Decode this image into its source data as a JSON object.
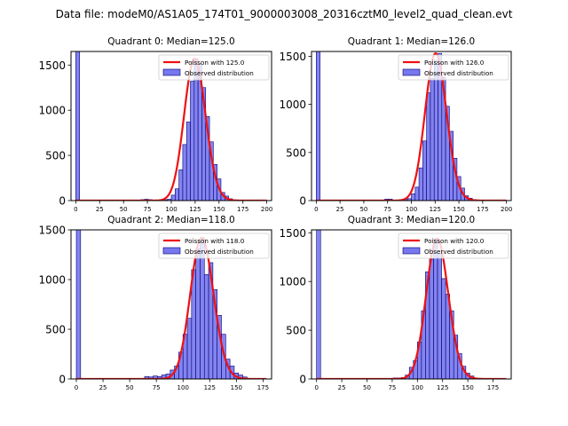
{
  "figure": {
    "title": "Data file: modeM0/AS1A05_174T01_9000003008_20316cztM0_level2_quad_clean.evt"
  },
  "colors": {
    "bar_fill": "#7777ee",
    "bar_edge": "#000077",
    "poisson_line": "#ee1111",
    "axis": "#000000"
  },
  "chart_data": [
    {
      "type": "bar",
      "title": "Quadrant 0: Median=125.0",
      "xlim": [
        -5,
        205
      ],
      "ylim": [
        0,
        1650
      ],
      "xticks": [
        "0",
        "25",
        "50",
        "75",
        "100",
        "125",
        "150",
        "175",
        "200"
      ],
      "yticks": [
        "0",
        "500",
        "1000",
        "1500"
      ],
      "legend": [
        "Poisson with 125.0",
        "Observed distribution"
      ],
      "median": 125,
      "bin_width": 4,
      "bins": [
        {
          "x": 0,
          "count": 1650
        },
        {
          "x": 68,
          "count": 10
        },
        {
          "x": 72,
          "count": 15
        },
        {
          "x": 76,
          "count": 10
        },
        {
          "x": 84,
          "count": 5
        },
        {
          "x": 92,
          "count": 10
        },
        {
          "x": 96,
          "count": 15
        },
        {
          "x": 100,
          "count": 60
        },
        {
          "x": 104,
          "count": 130
        },
        {
          "x": 108,
          "count": 340
        },
        {
          "x": 112,
          "count": 620
        },
        {
          "x": 116,
          "count": 870
        },
        {
          "x": 120,
          "count": 1320
        },
        {
          "x": 124,
          "count": 1570
        },
        {
          "x": 128,
          "count": 1510
        },
        {
          "x": 132,
          "count": 1250
        },
        {
          "x": 136,
          "count": 930
        },
        {
          "x": 140,
          "count": 650
        },
        {
          "x": 144,
          "count": 400
        },
        {
          "x": 148,
          "count": 240
        },
        {
          "x": 152,
          "count": 90
        },
        {
          "x": 156,
          "count": 50
        },
        {
          "x": 160,
          "count": 20
        },
        {
          "x": 164,
          "count": 5
        }
      ]
    },
    {
      "type": "bar",
      "title": "Quadrant 1: Median=126.0",
      "xlim": [
        -5,
        205
      ],
      "ylim": [
        0,
        1550
      ],
      "xticks": [
        "0",
        "25",
        "50",
        "75",
        "100",
        "125",
        "150",
        "175",
        "200"
      ],
      "yticks": [
        "0",
        "500",
        "1000",
        "1500"
      ],
      "legend": [
        "Poisson with 126.0",
        "Observed distribution"
      ],
      "median": 126,
      "bin_width": 4,
      "bins": [
        {
          "x": 0,
          "count": 1550
        },
        {
          "x": 72,
          "count": 15
        },
        {
          "x": 76,
          "count": 15
        },
        {
          "x": 80,
          "count": 5
        },
        {
          "x": 88,
          "count": 10
        },
        {
          "x": 92,
          "count": 10
        },
        {
          "x": 96,
          "count": 20
        },
        {
          "x": 100,
          "count": 70
        },
        {
          "x": 104,
          "count": 140
        },
        {
          "x": 108,
          "count": 340
        },
        {
          "x": 112,
          "count": 620
        },
        {
          "x": 116,
          "count": 1120
        },
        {
          "x": 120,
          "count": 1270
        },
        {
          "x": 124,
          "count": 1460
        },
        {
          "x": 128,
          "count": 1530
        },
        {
          "x": 132,
          "count": 1280
        },
        {
          "x": 136,
          "count": 980
        },
        {
          "x": 140,
          "count": 720
        },
        {
          "x": 144,
          "count": 440
        },
        {
          "x": 148,
          "count": 250
        },
        {
          "x": 152,
          "count": 130
        },
        {
          "x": 156,
          "count": 50
        },
        {
          "x": 160,
          "count": 25
        },
        {
          "x": 164,
          "count": 10
        }
      ]
    },
    {
      "type": "bar",
      "title": "Quadrant 2: Median=118.0",
      "xlim": [
        -5,
        183
      ],
      "ylim": [
        0,
        1500
      ],
      "xticks": [
        "0",
        "25",
        "50",
        "75",
        "100",
        "125",
        "150",
        "175"
      ],
      "yticks": [
        "0",
        "500",
        "1000",
        "1500"
      ],
      "legend": [
        "Poisson with 118.0",
        "Observed distribution"
      ],
      "median": 118,
      "bin_width": 4,
      "bins": [
        {
          "x": 0,
          "count": 1500
        },
        {
          "x": 64,
          "count": 25
        },
        {
          "x": 68,
          "count": 20
        },
        {
          "x": 72,
          "count": 30
        },
        {
          "x": 76,
          "count": 25
        },
        {
          "x": 80,
          "count": 40
        },
        {
          "x": 84,
          "count": 50
        },
        {
          "x": 88,
          "count": 90
        },
        {
          "x": 92,
          "count": 130
        },
        {
          "x": 96,
          "count": 270
        },
        {
          "x": 100,
          "count": 450
        },
        {
          "x": 104,
          "count": 610
        },
        {
          "x": 108,
          "count": 1100
        },
        {
          "x": 112,
          "count": 1310
        },
        {
          "x": 116,
          "count": 1420
        },
        {
          "x": 120,
          "count": 1050
        },
        {
          "x": 124,
          "count": 1170
        },
        {
          "x": 128,
          "count": 900
        },
        {
          "x": 132,
          "count": 640
        },
        {
          "x": 136,
          "count": 450
        },
        {
          "x": 140,
          "count": 200
        },
        {
          "x": 144,
          "count": 130
        },
        {
          "x": 148,
          "count": 60
        },
        {
          "x": 152,
          "count": 40
        },
        {
          "x": 156,
          "count": 20
        }
      ]
    },
    {
      "type": "bar",
      "title": "Quadrant 3: Median=120.0",
      "xlim": [
        -5,
        193
      ],
      "ylim": [
        0,
        1530
      ],
      "xticks": [
        "0",
        "25",
        "50",
        "75",
        "100",
        "125",
        "150",
        "175"
      ],
      "yticks": [
        "0",
        "500",
        "1000",
        "1500"
      ],
      "legend": [
        "Poisson with 120.0",
        "Observed distribution"
      ],
      "median": 120,
      "bin_width": 4,
      "bins": [
        {
          "x": 0,
          "count": 1530
        },
        {
          "x": 72,
          "count": 5
        },
        {
          "x": 76,
          "count": 10
        },
        {
          "x": 80,
          "count": 10
        },
        {
          "x": 84,
          "count": 15
        },
        {
          "x": 88,
          "count": 40
        },
        {
          "x": 92,
          "count": 120
        },
        {
          "x": 96,
          "count": 190
        },
        {
          "x": 100,
          "count": 380
        },
        {
          "x": 104,
          "count": 700
        },
        {
          "x": 108,
          "count": 1100
        },
        {
          "x": 112,
          "count": 1230
        },
        {
          "x": 116,
          "count": 1440
        },
        {
          "x": 120,
          "count": 1290
        },
        {
          "x": 124,
          "count": 1030
        },
        {
          "x": 128,
          "count": 870
        },
        {
          "x": 132,
          "count": 700
        },
        {
          "x": 136,
          "count": 450
        },
        {
          "x": 140,
          "count": 260
        },
        {
          "x": 144,
          "count": 130
        },
        {
          "x": 148,
          "count": 60
        },
        {
          "x": 152,
          "count": 30
        },
        {
          "x": 156,
          "count": 10
        }
      ]
    }
  ]
}
